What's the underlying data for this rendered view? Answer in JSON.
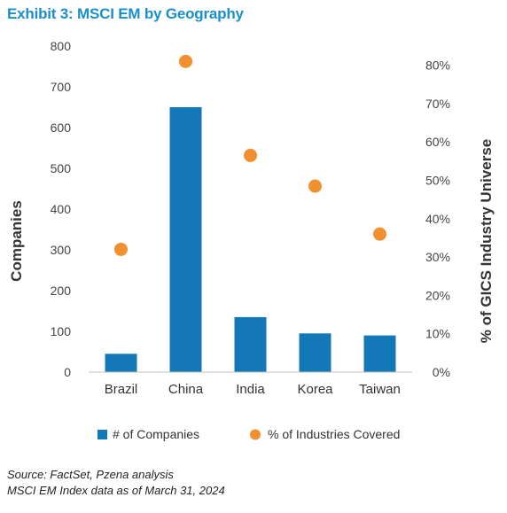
{
  "header": {
    "title": "Exhibit 3: MSCI EM by Geography"
  },
  "footer": {
    "source_line": "Source: FactSet, Pzena analysis",
    "date_line": "MSCI EM Index data as of March 31, 2024"
  },
  "chart_data": {
    "type": "bar",
    "title": "Exhibit 3: MSCI EM by Geography",
    "categories": [
      "Brazil",
      "China",
      "India",
      "Korea",
      "Taiwan"
    ],
    "ylabel": "Companies",
    "y2label": "% of GICS Industry Universe",
    "ylim": [
      0,
      800
    ],
    "yticks": [
      "0",
      "100",
      "200",
      "300",
      "400",
      "500",
      "600",
      "700",
      "800"
    ],
    "y2lim": [
      0,
      0.85
    ],
    "y2ticks": [
      "0%",
      "10%",
      "20%",
      "30%",
      "40%",
      "50%",
      "60%",
      "70%",
      "80%"
    ],
    "grid": false,
    "legend_position": "bottom",
    "series": [
      {
        "name": "# of Companies",
        "type": "bar",
        "axis": "left",
        "color": "#1478b8",
        "values": [
          45,
          650,
          135,
          95,
          90
        ]
      },
      {
        "name": "% of Industries Covered",
        "type": "scatter",
        "axis": "right",
        "color": "#f0902e",
        "values": [
          0.32,
          0.81,
          0.565,
          0.485,
          0.36
        ]
      }
    ]
  }
}
